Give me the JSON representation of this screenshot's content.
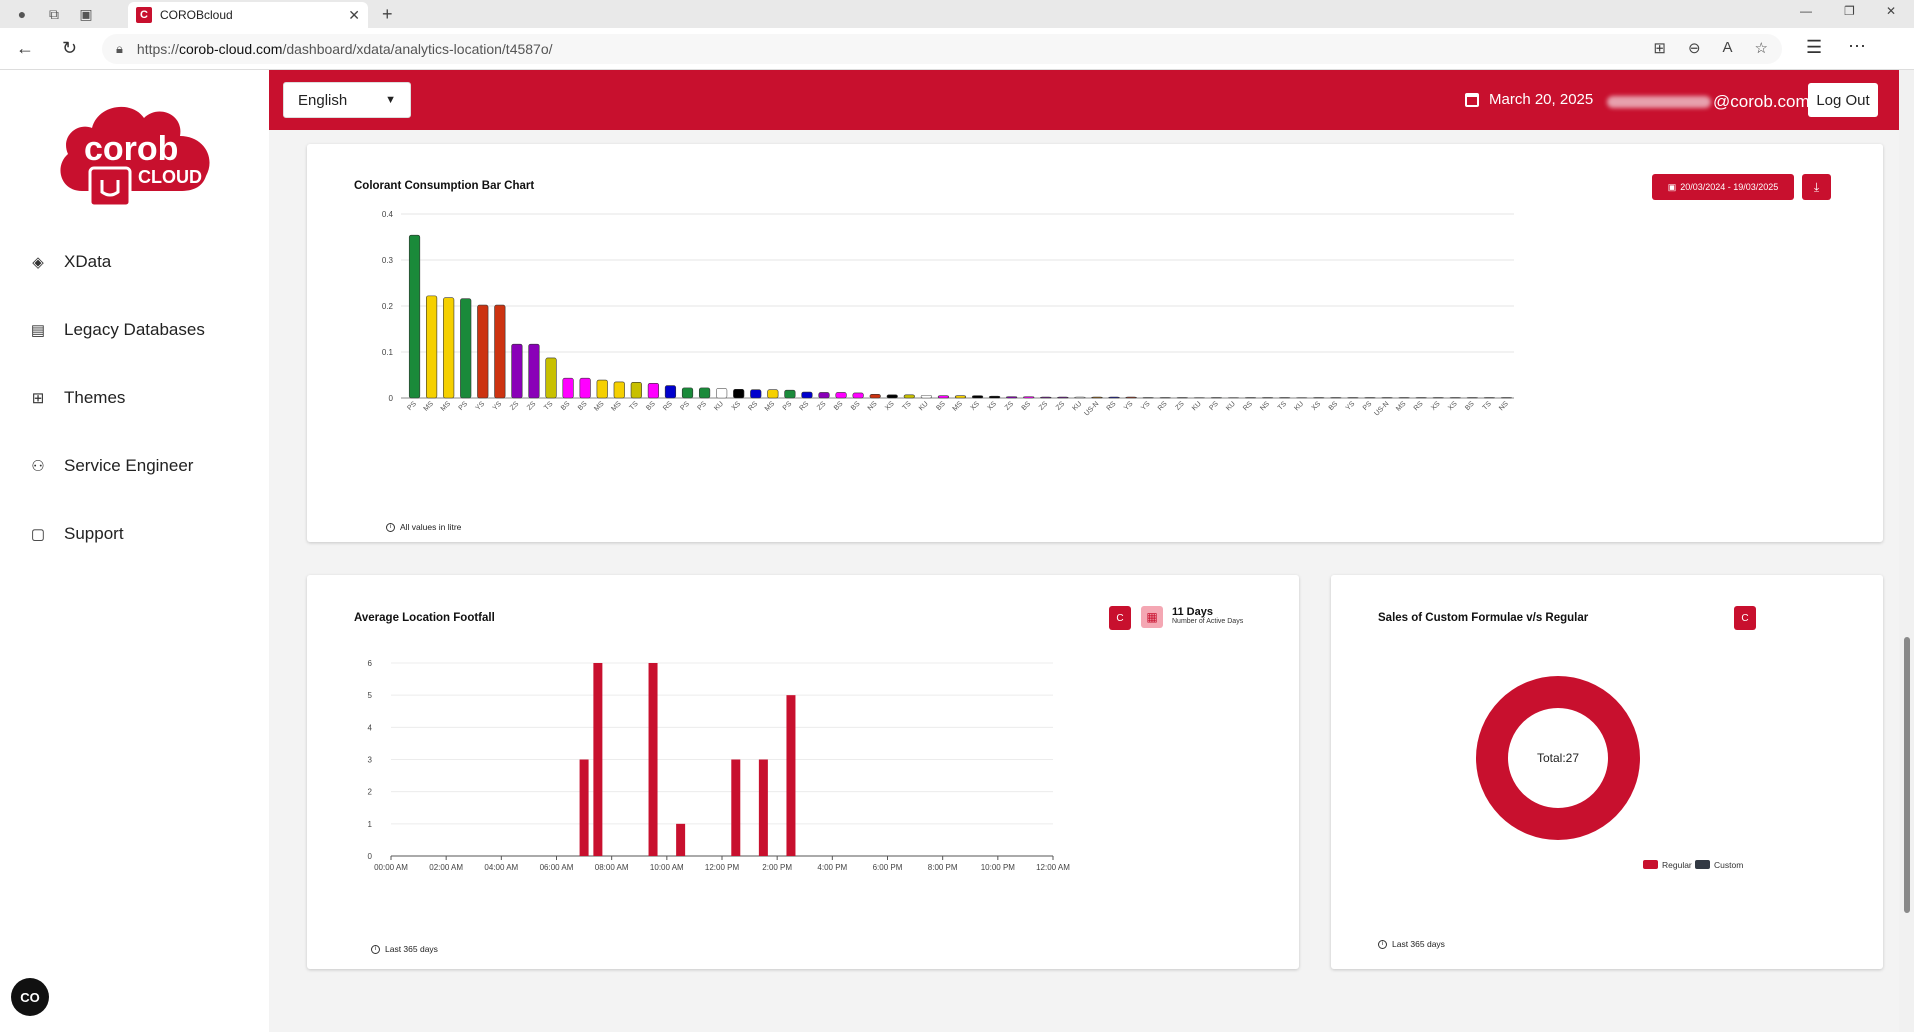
{
  "browser": {
    "tab_title": "COROBcloud",
    "tab_favicon": "C",
    "url_prefix": "https://",
    "url_domain": "corob-cloud.com",
    "url_path": "/dashboard/xdata/analytics-location/t4587o/"
  },
  "sidebar": {
    "logo_top": "corob",
    "logo_bottom": "CLOUD",
    "items": [
      {
        "label": "XData",
        "icon": "layers-icon"
      },
      {
        "label": "Legacy Databases",
        "icon": "table-icon"
      },
      {
        "label": "Themes",
        "icon": "grid-icon"
      },
      {
        "label": "Service Engineer",
        "icon": "engineer-icon"
      },
      {
        "label": "Support",
        "icon": "chat-icon"
      }
    ],
    "cookie_btn": "CO"
  },
  "header": {
    "language": "English",
    "date": "March 20, 2025",
    "email_suffix": "@corob.com",
    "logout": "Log Out",
    "brand_color": "#c8102e"
  },
  "consumption_card": {
    "title": "Colorant Consumption Bar Chart",
    "date_range": "20/03/2024 - 19/03/2025",
    "footnote": "All values in litre"
  },
  "footfall_card": {
    "title": "Average Location Footfall",
    "active_days_value": "11 Days",
    "active_days_label": "Number of Active Days",
    "footnote": "Last 365 days",
    "reset_label": "C"
  },
  "sales_card": {
    "title": "Sales of Custom Formulae v/s Regular",
    "center_label": "Total:27",
    "footnote": "Last 365 days",
    "reset_label": "C"
  },
  "chart_data": [
    {
      "type": "bar",
      "title": "Colorant Consumption Bar Chart",
      "ylim": [
        0,
        0.4
      ],
      "yticks": [
        "0",
        "0.1",
        "0.2",
        "0.3",
        "0.4"
      ],
      "categories": [
        "PS",
        "MS",
        "MS",
        "PS",
        "YS",
        "YS",
        "ZS",
        "ZS",
        "TS",
        "BS",
        "BS",
        "MS",
        "MS",
        "TS",
        "BS",
        "RS",
        "PS",
        "PS",
        "KU",
        "XS",
        "RS",
        "MS",
        "PS",
        "RS",
        "ZS",
        "BS",
        "BS",
        "NS",
        "XS",
        "TS",
        "KU",
        "BS",
        "MS",
        "XS",
        "XS",
        "ZS",
        "BS",
        "ZS",
        "ZS",
        "KU",
        "US-N",
        "RS",
        "YS",
        "YS",
        "RS",
        "ZS",
        "KU",
        "PS",
        "KU",
        "RS",
        "NS",
        "TS",
        "KU",
        "XS",
        "BS",
        "YS",
        "PS",
        "US-N",
        "MS",
        "RS",
        "XS",
        "XS",
        "BS",
        "TS",
        "NS"
      ],
      "values": [
        0.354,
        0.222,
        0.218,
        0.216,
        0.202,
        0.202,
        0.117,
        0.117,
        0.087,
        0.043,
        0.043,
        0.039,
        0.035,
        0.034,
        0.032,
        0.027,
        0.022,
        0.022,
        0.021,
        0.019,
        0.018,
        0.018,
        0.017,
        0.013,
        0.012,
        0.012,
        0.011,
        0.008,
        0.007,
        0.007,
        0.006,
        0.005,
        0.005,
        0.005,
        0.004,
        0.003,
        0.003,
        0.002,
        0.002,
        0.002,
        0.002,
        0.002,
        0.002,
        0.001,
        0.001,
        0.001,
        0.001,
        0.001,
        0.001,
        0.001,
        0.001,
        0.001,
        0.001,
        0.001,
        0.001,
        0.001,
        0.001,
        0.001,
        0.001,
        0.001,
        0.001,
        0.001,
        0.001,
        0.001,
        0.001
      ],
      "colors": [
        "#1a8a3a",
        "#f5d000",
        "#f5d000",
        "#1a8a3a",
        "#cc3311",
        "#cc3311",
        "#8a00b8",
        "#8a00b8",
        "#c8c000",
        "#ff00ff",
        "#ff00ff",
        "#f5d000",
        "#f5d000",
        "#c8c000",
        "#ff00ff",
        "#0000cc",
        "#1a8a3a",
        "#1a8a3a",
        "#ffffff",
        "#000000",
        "#0000cc",
        "#f5d000",
        "#1a8a3a",
        "#0000cc",
        "#8a00b8",
        "#ff00ff",
        "#ff00ff",
        "#cc3311",
        "#000000",
        "#c8c000",
        "#ffffff",
        "#ff00ff",
        "#f5d000",
        "#000000",
        "#000000",
        "#8a00b8",
        "#ff00ff",
        "#8a00b8",
        "#8a00b8",
        "#ffffff",
        "#cc7a00",
        "#0000cc",
        "#cc3311",
        "#cc3311",
        "#0000cc",
        "#8a00b8",
        "#ffffff",
        "#1a8a3a",
        "#ffffff",
        "#0000cc",
        "#cc3311",
        "#c8c000",
        "#ffffff",
        "#000000",
        "#ff00ff",
        "#cc3311",
        "#1a8a3a",
        "#cc7a00",
        "#f5d000",
        "#0000cc",
        "#000000",
        "#000000",
        "#ff00ff",
        "#c8c000",
        "#cc3311"
      ]
    },
    {
      "type": "bar",
      "title": "Average Location Footfall",
      "ylim": [
        0,
        6
      ],
      "yticks": [
        "0",
        "1",
        "2",
        "3",
        "4",
        "5",
        "6"
      ],
      "x_tick_labels": [
        "00:00 AM",
        "02:00 AM",
        "04:00 AM",
        "06:00 AM",
        "08:00 AM",
        "10:00 AM",
        "12:00 PM",
        "2:00 PM",
        "4:00 PM",
        "6:00 PM",
        "8:00 PM",
        "10:00 PM",
        "12:00 AM"
      ],
      "hours": [
        7,
        7.5,
        9.5,
        10.5,
        12.5,
        13.5,
        14.5
      ],
      "values": [
        3,
        6,
        6,
        1,
        3,
        3,
        5
      ],
      "color": "#c8102e"
    },
    {
      "type": "pie",
      "title": "Sales of Custom Formulae v/s Regular",
      "total": 27,
      "series": [
        {
          "name": "Regular",
          "value": 27,
          "color": "#c8102e"
        },
        {
          "name": "Custom",
          "value": 0,
          "color": "#333a44"
        }
      ]
    }
  ]
}
